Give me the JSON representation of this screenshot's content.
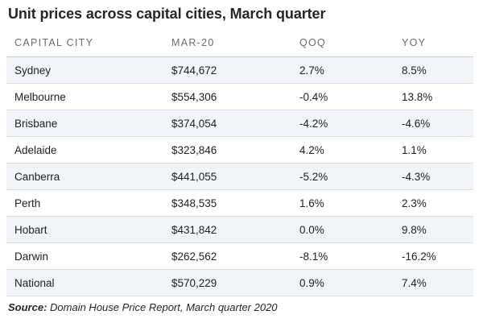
{
  "title": "Unit prices across capital cities, March quarter",
  "source": {
    "label": "Source:",
    "text": " Domain House Price Report, March quarter 2020"
  },
  "chart_data": {
    "type": "table",
    "title": "Unit prices across capital cities, March quarter",
    "columns": [
      "CAPITAL CITY",
      "MAR-20",
      "QOQ",
      "YOY"
    ],
    "rows": [
      [
        "Sydney",
        "$744,672",
        "2.7%",
        "8.5%"
      ],
      [
        "Melbourne",
        "$554,306",
        "-0.4%",
        "13.8%"
      ],
      [
        "Brisbane",
        "$374,054",
        "-4.2%",
        "-4.6%"
      ],
      [
        "Adelaide",
        "$323,846",
        "4.2%",
        "1.1%"
      ],
      [
        "Canberra",
        "$441,055",
        "-5.2%",
        "-4.3%"
      ],
      [
        "Perth",
        "$348,535",
        "1.6%",
        "2.3%"
      ],
      [
        "Hobart",
        "$431,842",
        "0.0%",
        "9.8%"
      ],
      [
        "Darwin",
        "$262,562",
        "-8.1%",
        "-16.2%"
      ],
      [
        "National",
        "$570,229",
        "0.9%",
        "7.4%"
      ]
    ]
  }
}
